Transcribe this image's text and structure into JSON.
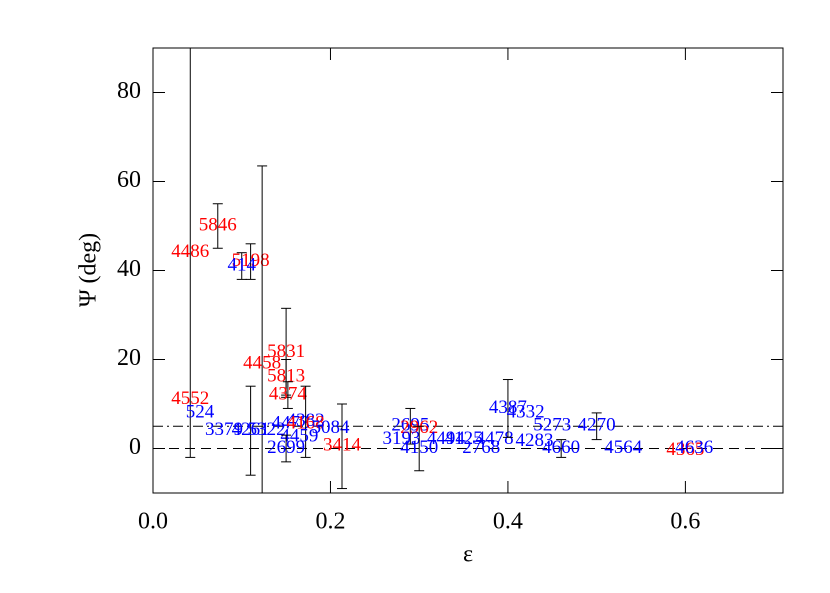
{
  "chart_data": {
    "type": "scatter",
    "x_label": "ε",
    "y_label": "Ψ (deg)",
    "xlim": [
      0,
      0.71
    ],
    "ylim": [
      -10,
      90
    ],
    "xticks": [
      {
        "value": 0,
        "label": "0.0"
      },
      0.2,
      0.4,
      0.6
    ],
    "yticks": [
      0,
      20,
      40,
      60,
      80
    ],
    "hlines": [
      {
        "y": 0,
        "style": "dashed"
      },
      {
        "y": 5,
        "style": "dashdot"
      }
    ],
    "points": [
      {
        "label": "5846",
        "x": 0.073,
        "y": 50,
        "err": 5,
        "color": "#ff0000"
      },
      {
        "label": "4486",
        "x": 0.042,
        "y": 44,
        "err": 46,
        "color": "#ff0000"
      },
      {
        "label": "5198",
        "x": 0.11,
        "y": 42,
        "err": 4,
        "color": "#ff0000"
      },
      {
        "label": "414",
        "x": 0.1,
        "y": 41,
        "err": 3,
        "color": "#0000ff"
      },
      {
        "label": "5831",
        "x": 0.15,
        "y": 21.5,
        "err": 10,
        "color": "#ff0000"
      },
      {
        "label": "4458",
        "x": 0.123,
        "y": 19,
        "err": 44.5,
        "color": "#ff0000"
      },
      {
        "label": "5813",
        "x": 0.15,
        "y": 16,
        "err": 4,
        "color": "#ff0000"
      },
      {
        "label": "4374",
        "x": 0.152,
        "y": 12,
        "err": 3,
        "color": "#ff0000"
      },
      {
        "label": "4552",
        "x": 0.042,
        "y": 11,
        "color": "#ff0000"
      },
      {
        "label": "524",
        "x": 0.053,
        "y": 8,
        "color": "#0000ff"
      },
      {
        "label": "3379",
        "x": 0.08,
        "y": 4,
        "color": "#0000ff"
      },
      {
        "label": "4261",
        "x": 0.11,
        "y": 4,
        "err": 10,
        "color": "#0000ff"
      },
      {
        "label": "5322",
        "x": 0.128,
        "y": 4,
        "color": "#0000ff"
      },
      {
        "label": "4473",
        "x": 0.155,
        "y": 5.5,
        "color": "#0000ff"
      },
      {
        "label": "4382",
        "x": 0.172,
        "y": 6,
        "err": 8,
        "color": "#0000ff"
      },
      {
        "label": "4168",
        "x": 0.172,
        "y": 5.5,
        "color": "#ff0000"
      },
      {
        "label": "4459",
        "x": 0.165,
        "y": 2.5,
        "color": "#0000ff"
      },
      {
        "label": "2699",
        "x": 0.15,
        "y": 0,
        "err": 3,
        "color": "#0000ff"
      },
      {
        "label": "5084",
        "x": 0.2,
        "y": 4.5,
        "color": "#0000ff"
      },
      {
        "label": "3414",
        "x": 0.213,
        "y": 0.5,
        "err": 9.5,
        "color": "#ff0000"
      },
      {
        "label": "2695",
        "x": 0.29,
        "y": 5,
        "err": 4,
        "color": "#0000ff"
      },
      {
        "label": "2962",
        "x": 0.3,
        "y": 4.5,
        "color": "#ff0000"
      },
      {
        "label": "3193",
        "x": 0.28,
        "y": 2,
        "color": "#0000ff"
      },
      {
        "label": "4150",
        "x": 0.3,
        "y": 0,
        "err": 5,
        "color": "#0000ff"
      },
      {
        "label": "4494",
        "x": 0.33,
        "y": 2,
        "color": "#0000ff"
      },
      {
        "label": "4125",
        "x": 0.35,
        "y": 2,
        "color": "#0000ff"
      },
      {
        "label": "2768",
        "x": 0.37,
        "y": 0,
        "color": "#0000ff"
      },
      {
        "label": "4478",
        "x": 0.385,
        "y": 2,
        "color": "#0000ff"
      },
      {
        "label": "4387",
        "x": 0.4,
        "y": 9,
        "err": 6.5,
        "color": "#0000ff"
      },
      {
        "label": "4332",
        "x": 0.42,
        "y": 8,
        "color": "#0000ff"
      },
      {
        "label": "4283",
        "x": 0.43,
        "y": 1.5,
        "color": "#0000ff"
      },
      {
        "label": "5273",
        "x": 0.45,
        "y": 5,
        "color": "#0000ff"
      },
      {
        "label": "4660",
        "x": 0.46,
        "y": 0,
        "err": 2,
        "color": "#0000ff"
      },
      {
        "label": "4270",
        "x": 0.5,
        "y": 5,
        "err": 3,
        "color": "#0000ff"
      },
      {
        "label": "4564",
        "x": 0.53,
        "y": 0,
        "color": "#0000ff"
      },
      {
        "label": "4365",
        "x": 0.6,
        "y": -0.5,
        "color": "#ff0000"
      },
      {
        "label": "4636",
        "x": 0.61,
        "y": 0,
        "color": "#0000ff"
      }
    ]
  }
}
